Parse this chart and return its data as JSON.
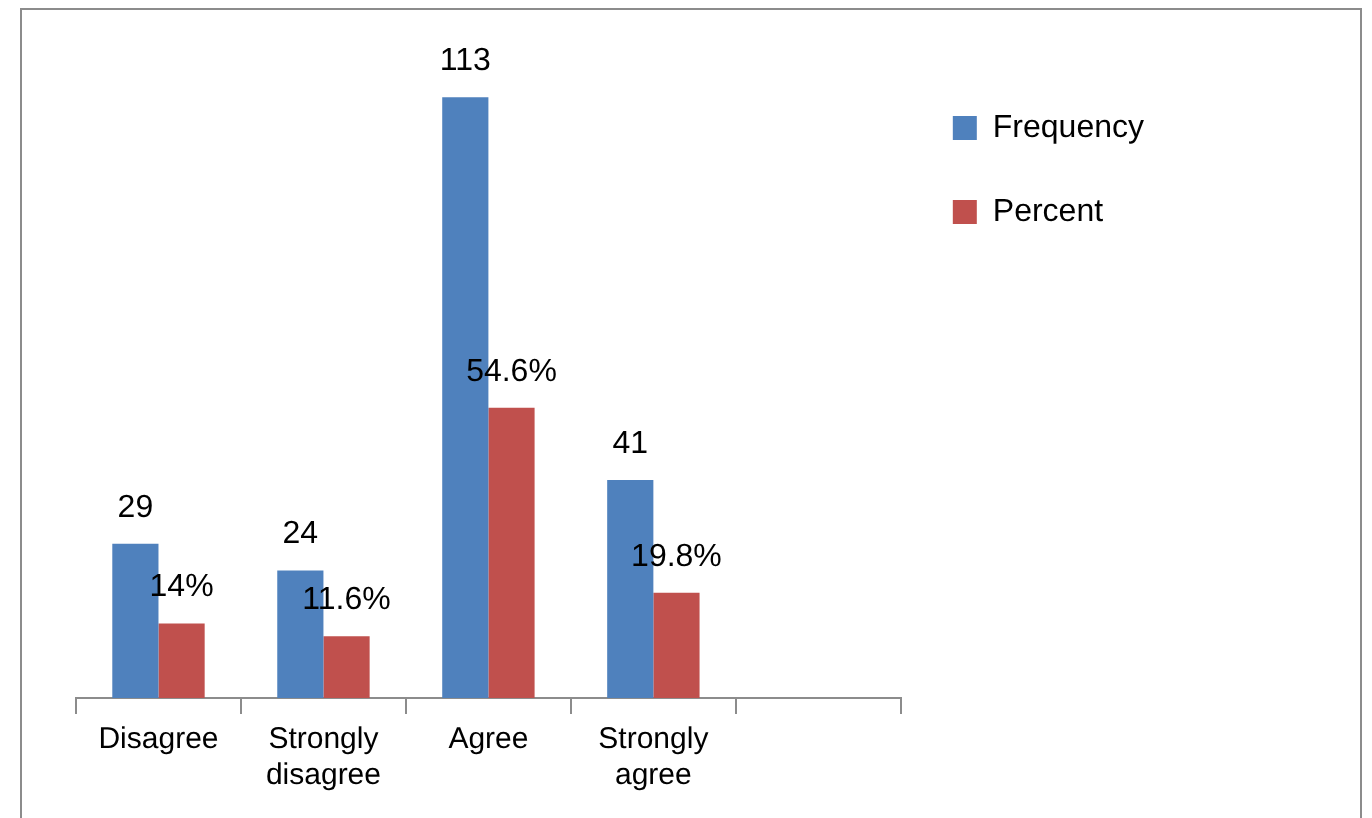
{
  "chart_data": {
    "type": "bar",
    "categories": [
      "Disagree",
      "Strongly disagree",
      "Agree",
      "Strongly agree",
      null
    ],
    "series": [
      {
        "name": "Frequency",
        "color": "#4f81bd",
        "values": [
          29,
          24,
          113,
          41,
          null
        ],
        "value_labels": [
          "29",
          "24",
          "113",
          "41",
          null
        ]
      },
      {
        "name": "Percent",
        "color": "#c0504d",
        "values": [
          14,
          11.6,
          54.6,
          19.8,
          null
        ],
        "value_labels": [
          "14%",
          "11.6%",
          "54.6%",
          "19.8%",
          null
        ]
      }
    ],
    "legend": "top right"
  }
}
